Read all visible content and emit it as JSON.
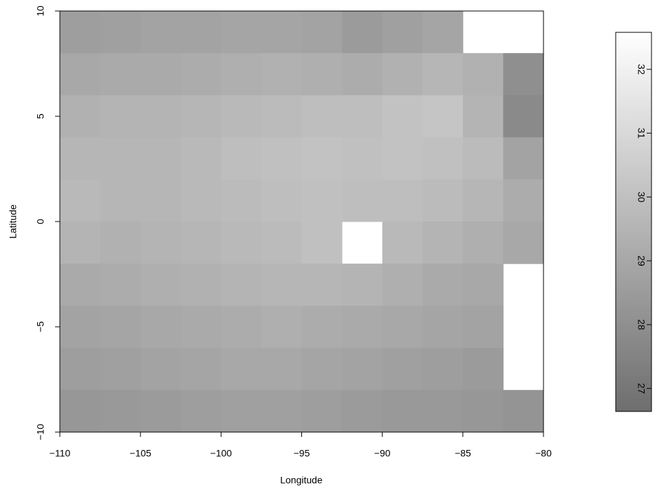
{
  "chart_data": {
    "type": "heatmap",
    "x_label": "Longitude",
    "y_label": "Latitude",
    "xlim": [
      -110,
      -80
    ],
    "ylim": [
      -10,
      10
    ],
    "xticks": [
      {
        "value": -110,
        "label": "−110"
      },
      {
        "value": -105,
        "label": "−105"
      },
      {
        "value": -100,
        "label": "−100"
      },
      {
        "value": -95,
        "label": "−95"
      },
      {
        "value": -90,
        "label": "−90"
      },
      {
        "value": -85,
        "label": "−85"
      },
      {
        "value": -80,
        "label": "−80"
      }
    ],
    "yticks": [
      {
        "value": -10,
        "label": "−10"
      },
      {
        "value": -5,
        "label": "−5"
      },
      0,
      5,
      10
    ],
    "x_edges": [
      -110,
      -107.5,
      -105,
      -102.5,
      -100,
      -97.5,
      -95,
      -92.5,
      -90,
      -87.5,
      -85,
      -82.5,
      -80
    ],
    "y_edges": [
      10,
      8,
      6,
      4,
      2,
      0,
      -2,
      -4,
      -6,
      -8,
      -10
    ],
    "z": [
      [
        28.6,
        28.7,
        28.8,
        28.8,
        28.9,
        28.9,
        28.8,
        28.5,
        28.7,
        28.9,
        null,
        null
      ],
      [
        29.0,
        29.1,
        29.1,
        29.2,
        29.3,
        29.4,
        29.3,
        29.2,
        29.4,
        29.6,
        29.4,
        28.0
      ],
      [
        29.4,
        29.5,
        29.5,
        29.6,
        29.7,
        29.8,
        29.9,
        29.9,
        30.1,
        30.2,
        29.5,
        27.8
      ],
      [
        29.6,
        29.6,
        29.6,
        29.7,
        29.9,
        30.0,
        30.1,
        30.0,
        30.1,
        30.0,
        29.8,
        28.8
      ],
      [
        29.7,
        29.6,
        29.6,
        29.7,
        29.8,
        29.9,
        30.0,
        29.9,
        29.9,
        29.8,
        29.6,
        29.2
      ],
      [
        29.5,
        29.4,
        29.5,
        29.6,
        29.7,
        29.8,
        30.0,
        null,
        29.7,
        29.5,
        29.3,
        29.0
      ],
      [
        29.1,
        29.2,
        29.3,
        29.4,
        29.5,
        29.6,
        29.6,
        29.5,
        29.3,
        29.1,
        29.0,
        null
      ],
      [
        28.8,
        28.9,
        29.0,
        29.1,
        29.2,
        29.3,
        29.2,
        29.1,
        29.0,
        28.9,
        28.8,
        null
      ],
      [
        28.6,
        28.7,
        28.8,
        28.9,
        29.0,
        29.0,
        28.9,
        28.8,
        28.7,
        28.6,
        28.5,
        null
      ],
      [
        28.3,
        28.4,
        28.5,
        28.6,
        28.7,
        28.7,
        28.6,
        28.5,
        28.4,
        28.4,
        28.3,
        28.2
      ]
    ],
    "zlim": [
      26.64,
      32.58
    ],
    "zticks": [
      27,
      28,
      29,
      30,
      31,
      32
    ],
    "colors": [
      "#6e6e6e",
      "#ffffff"
    ]
  }
}
